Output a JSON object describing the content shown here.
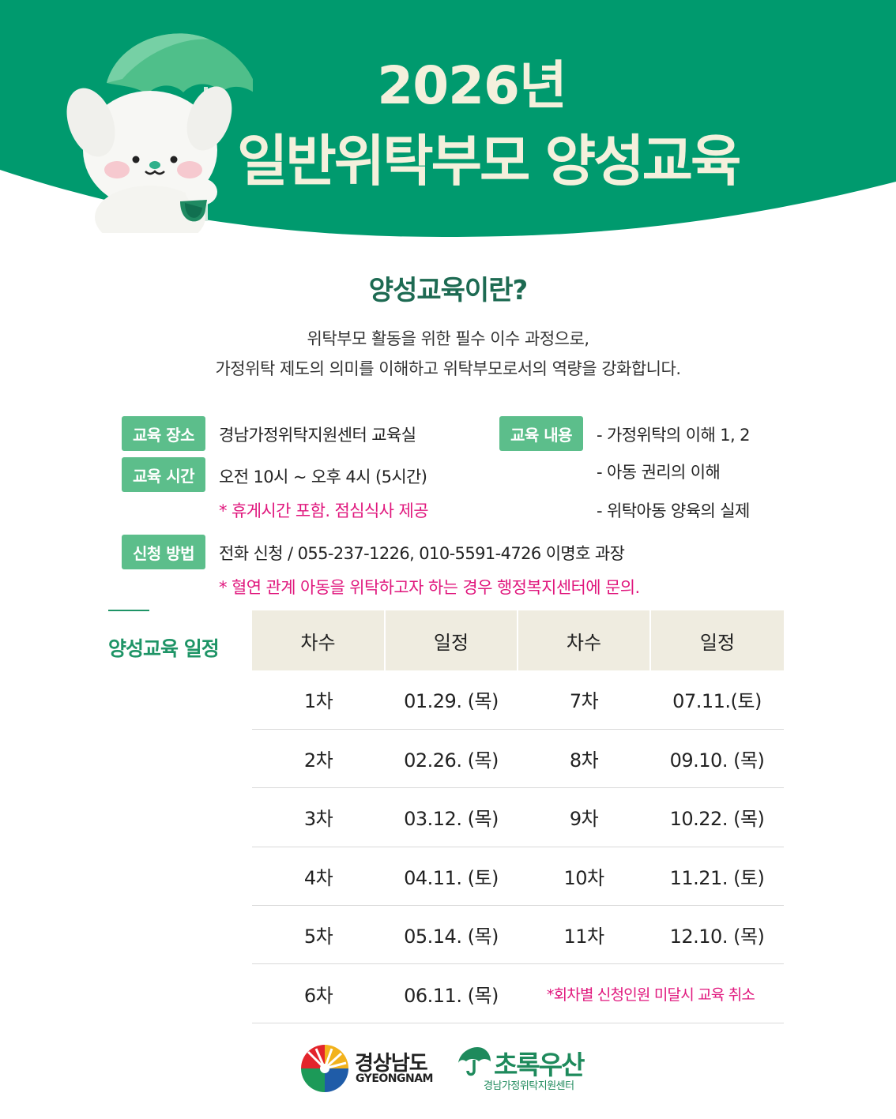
{
  "header": {
    "year_title": "2026년",
    "main_title": "일반위탁부모 양성교육"
  },
  "intro": {
    "heading": "양성교육이란?",
    "line1": "위탁부모 활동을 위한 필수 이수 과정으로,",
    "line2": "가정위탁 제도의 의미를 이해하고 위탁부모로서의 역량을 강화합니다."
  },
  "info": {
    "place_label": "교육 장소",
    "place_value": "경남가정위탁지원센터 교육실",
    "time_label": "교육 시간",
    "time_value": "오전 10시 ~ 오후 4시 (5시간)",
    "time_note": "* 휴게시간 포함. 점심식사 제공",
    "content_label": "교육 내용",
    "content_items": [
      "- 가정위탁의 이해 1, 2",
      "- 아동 권리의 이해",
      "- 위탁아동 양육의 실제"
    ],
    "apply_label": "신청 방법",
    "apply_value": "전화 신청 / 055-237-1226, 010-5591-4726 이명호 과장",
    "apply_note": "* 혈연 관계 아동을 위탁하고자 하는 경우  행정복지센터에 문의."
  },
  "schedule": {
    "title": "양성교육 일정",
    "headers": [
      "차수",
      "일정",
      "차수",
      "일정"
    ],
    "rows": [
      [
        "1차",
        "01.29. (목)",
        "7차",
        "07.11.(토)"
      ],
      [
        "2차",
        "02.26. (목)",
        "8차",
        "09.10. (목)"
      ],
      [
        "3차",
        "03.12. (목)",
        "9차",
        "10.22. (목)"
      ],
      [
        "4차",
        "04.11. (토)",
        "10차",
        "11.21. (토)"
      ],
      [
        "5차",
        "05.14. (목)",
        "11차",
        "12.10. (목)"
      ],
      [
        "6차",
        "06.11. (목)"
      ]
    ],
    "note": "*회차별 신청인원 미달시 교육 취소"
  },
  "footer": {
    "logo1_name": "경상남도",
    "logo1_en": "GYEONGNAM",
    "logo2_name": "초록우산",
    "logo2_sub": "경남가정위탁지원센터"
  },
  "colors": {
    "header_green": "#009a6e",
    "label_green": "#5cbe8b",
    "heading_green": "#1d6a52",
    "accent_pink": "#e0177d",
    "table_header_bg": "#efece0"
  }
}
